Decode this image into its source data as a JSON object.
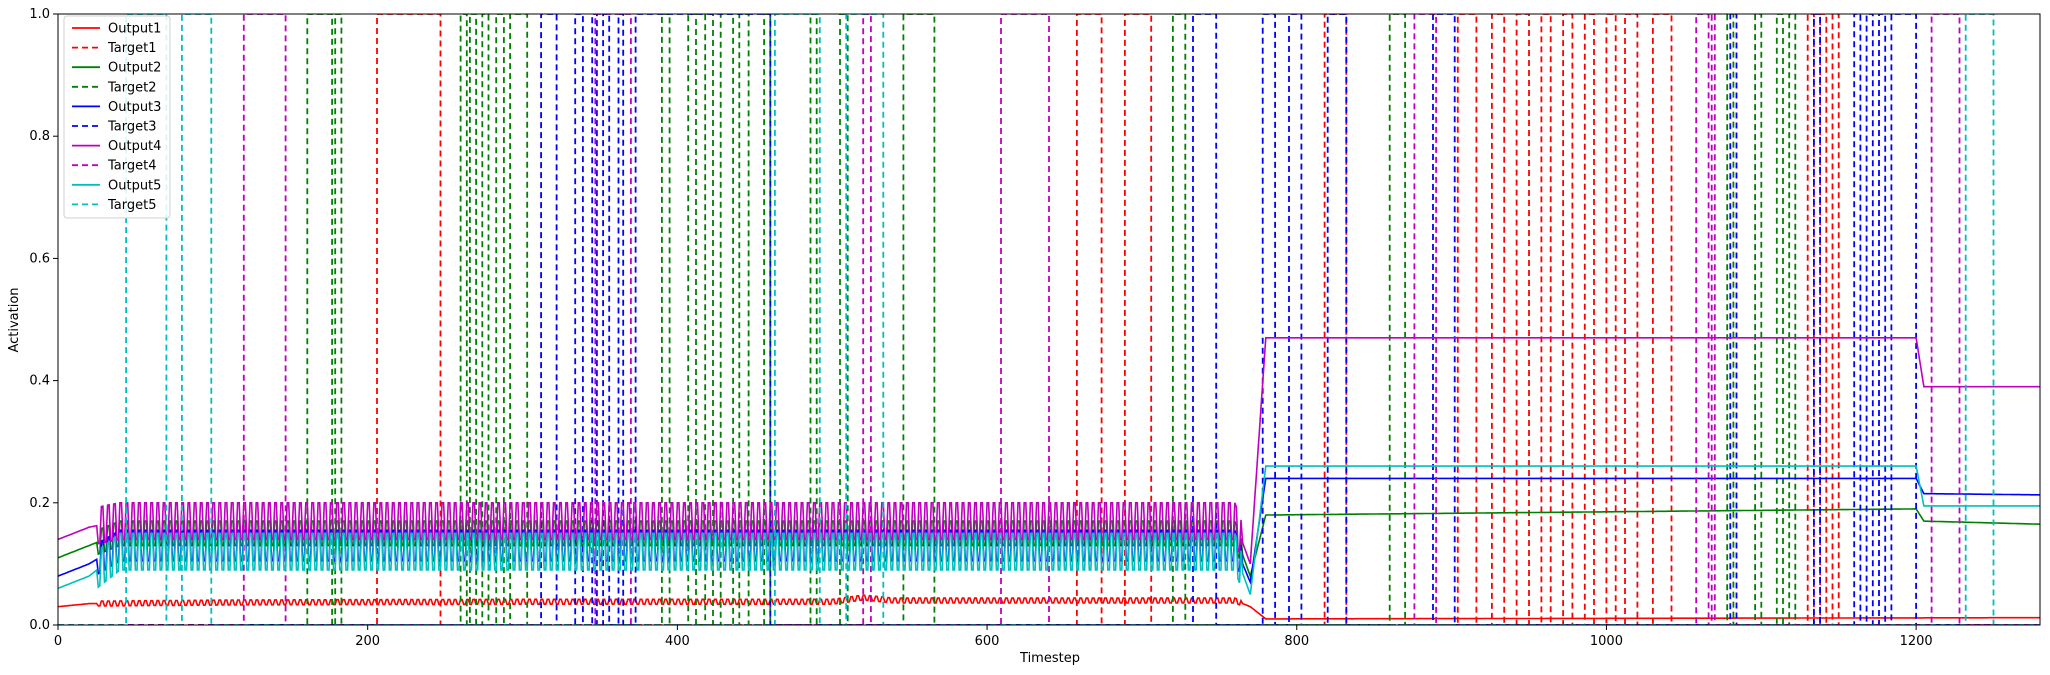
{
  "chart_data": {
    "type": "line",
    "title": "",
    "xlabel": "Timestep",
    "ylabel": "Activation",
    "xlim": [
      0,
      1280
    ],
    "ylim": [
      0,
      1.0
    ],
    "x_ticks": [
      0,
      200,
      400,
      600,
      800,
      1000,
      1200
    ],
    "x_tick_labels": [
      "0",
      "200",
      "400",
      "600",
      "800",
      "1000",
      "1200"
    ],
    "y_ticks": [
      0,
      0.2,
      0.4,
      0.6,
      0.8,
      1.0
    ],
    "y_tick_labels": [
      "0.0",
      "0.2",
      "0.4",
      "0.6",
      "0.8",
      "1.0"
    ],
    "grid": false,
    "legend_position": "top-left",
    "series": [
      {
        "name": "Output1",
        "color": "#ff0000",
        "style": "solid",
        "x": [
          0,
          20,
          120,
          300,
          500,
          520,
          540,
          760,
          770,
          780,
          1280
        ],
        "y": [
          0.03,
          0.035,
          0.037,
          0.038,
          0.038,
          0.045,
          0.04,
          0.04,
          0.03,
          0.01,
          0.012
        ]
      },
      {
        "name": "Target1",
        "color": "#ff0000",
        "style": "dashed",
        "pulses": [
          [
            206,
            247
          ],
          [
            658,
            674
          ],
          [
            689,
            706
          ],
          [
            818,
            832
          ],
          [
            904,
            916
          ],
          [
            926,
            934
          ],
          [
            942,
            950
          ],
          [
            958,
            964
          ],
          [
            972,
            978
          ],
          [
            986,
            992
          ],
          [
            1000,
            1006
          ],
          [
            1012,
            1020
          ],
          [
            1030,
            1042
          ],
          [
            1130,
            1134
          ],
          [
            1138,
            1142
          ],
          [
            1146,
            1150
          ]
        ]
      },
      {
        "name": "Output2",
        "color": "#008000",
        "style": "solid",
        "x": [
          0,
          10,
          20,
          40,
          120,
          300,
          500,
          760,
          770,
          780,
          1200,
          1205,
          1280
        ],
        "y": [
          0.11,
          0.12,
          0.13,
          0.15,
          0.15,
          0.15,
          0.15,
          0.15,
          0.08,
          0.18,
          0.19,
          0.17,
          0.165
        ]
      },
      {
        "name": "Target2",
        "color": "#008000",
        "style": "dashed",
        "pulses": [
          [
            161,
            177
          ],
          [
            179,
            183
          ],
          [
            260,
            264
          ],
          [
            266,
            270
          ],
          [
            274,
            278
          ],
          [
            283,
            288
          ],
          [
            292,
            303
          ],
          [
            390,
            395
          ],
          [
            407,
            412
          ],
          [
            418,
            423
          ],
          [
            428,
            436
          ],
          [
            440,
            446
          ],
          [
            456,
            460
          ],
          [
            486,
            490
          ],
          [
            505,
            510
          ],
          [
            546,
            566
          ],
          [
            720,
            728
          ],
          [
            860,
            870
          ],
          [
            1078,
            1082
          ],
          [
            1096,
            1100
          ],
          [
            1110,
            1114
          ],
          [
            1118,
            1122
          ]
        ]
      },
      {
        "name": "Output3",
        "color": "#0000ff",
        "style": "solid",
        "x": [
          0,
          10,
          20,
          40,
          120,
          300,
          500,
          760,
          770,
          780,
          1200,
          1205,
          1280
        ],
        "y": [
          0.08,
          0.09,
          0.1,
          0.13,
          0.13,
          0.13,
          0.13,
          0.13,
          0.07,
          0.24,
          0.24,
          0.215,
          0.213
        ]
      },
      {
        "name": "Target3",
        "color": "#0000ff",
        "style": "dashed",
        "pulses": [
          [
            312,
            322
          ],
          [
            334,
            339
          ],
          [
            345,
            348
          ],
          [
            352,
            356
          ],
          [
            362,
            365
          ],
          [
            373,
            460
          ],
          [
            733,
            748
          ],
          [
            778,
            786
          ],
          [
            795,
            803
          ],
          [
            820,
            832
          ],
          [
            888,
            902
          ],
          [
            1080,
            1084
          ],
          [
            1134,
            1138
          ],
          [
            1160,
            1164
          ],
          [
            1168,
            1172
          ],
          [
            1176,
            1180
          ],
          [
            1184,
            1200
          ]
        ]
      },
      {
        "name": "Output4",
        "color": "#bf00bf",
        "style": "solid",
        "x": [
          0,
          10,
          20,
          40,
          120,
          300,
          500,
          760,
          770,
          780,
          1200,
          1205,
          1280
        ],
        "y": [
          0.14,
          0.15,
          0.16,
          0.17,
          0.17,
          0.17,
          0.17,
          0.17,
          0.1,
          0.47,
          0.47,
          0.39,
          0.39
        ]
      },
      {
        "name": "Target4",
        "color": "#bf00bf",
        "style": "dashed",
        "pulses": [
          [
            120,
            147
          ],
          [
            347,
            370
          ],
          [
            520,
            525
          ],
          [
            609,
            640
          ],
          [
            876,
            890
          ],
          [
            1058,
            1066
          ],
          [
            1068,
            1070
          ],
          [
            1210,
            1228
          ]
        ]
      },
      {
        "name": "Output5",
        "color": "#00bfbf",
        "style": "solid",
        "x": [
          0,
          10,
          20,
          40,
          120,
          300,
          500,
          760,
          770,
          780,
          1200,
          1205,
          1280
        ],
        "y": [
          0.06,
          0.07,
          0.08,
          0.12,
          0.12,
          0.12,
          0.12,
          0.12,
          0.05,
          0.26,
          0.26,
          0.195,
          0.195
        ]
      },
      {
        "name": "Target5",
        "color": "#00bfbf",
        "style": "dashed",
        "pulses": [
          [
            44,
            70
          ],
          [
            80,
            99
          ],
          [
            463,
            492
          ],
          [
            509,
            533
          ],
          [
            1232,
            1250
          ]
        ]
      }
    ]
  }
}
